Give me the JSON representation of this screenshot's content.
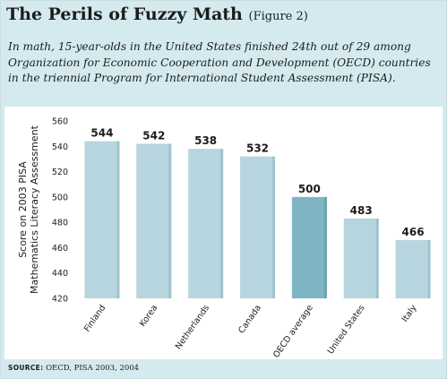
{
  "header": {
    "title": "The Perils of Fuzzy Math",
    "figure_label": "(Figure 2)",
    "subtitle": "In math, 15-year-olds in the United States finished 24th out of 29 among Organization for Economic Cooperation and Development (OECD) countries in the triennial Program for International Student Assessment (PISA)."
  },
  "source": {
    "label": "SOURCE:",
    "text": "OECD, PISA 2003, 2004"
  },
  "colors": {
    "bar": "#b7d5de",
    "bar_highlight": "#7fb5c3",
    "panel_background": "#d4eaef"
  },
  "chart_data": {
    "type": "bar",
    "categories": [
      "Finland",
      "Korea",
      "Netherlands",
      "Canada",
      "OECD average",
      "United States",
      "Italy"
    ],
    "values": [
      544,
      542,
      538,
      532,
      500,
      483,
      466
    ],
    "data_labels": [
      "544",
      "542",
      "538",
      "532",
      "500",
      "483",
      "466"
    ],
    "highlighted_category": "OECD average",
    "title": "",
    "xlabel": "",
    "ylabel_lines": [
      "Score on 2003 PISA",
      "Mathematics Literacy Assessment"
    ],
    "ylim": [
      420,
      560
    ],
    "yticks": [
      420,
      440,
      460,
      480,
      500,
      520,
      540,
      560
    ],
    "ytick_labels": [
      "420",
      "440",
      "460",
      "480",
      "500",
      "520",
      "540",
      "560"
    ],
    "grid": false,
    "legend": "none"
  }
}
